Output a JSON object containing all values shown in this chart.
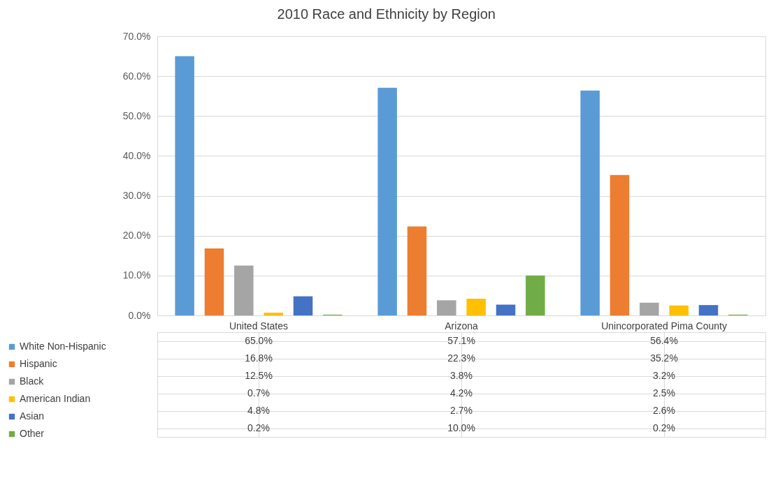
{
  "chart_data": {
    "type": "bar",
    "title": "2010 Race and Ethnicity by Region",
    "categories": [
      "United States",
      "Arizona",
      "Unincorporated Pima County"
    ],
    "series": [
      {
        "name": "White Non-Hispanic",
        "color": "#5b9bd5",
        "values": [
          65.0,
          57.1,
          56.4
        ],
        "value_labels": [
          "65.0%",
          "57.1%",
          "56.4%"
        ]
      },
      {
        "name": "Hispanic",
        "color": "#ed7d31",
        "values": [
          16.8,
          22.3,
          35.2
        ],
        "value_labels": [
          "16.8%",
          "22.3%",
          "35.2%"
        ]
      },
      {
        "name": "Black",
        "color": "#a5a5a5",
        "values": [
          12.5,
          3.8,
          3.2
        ],
        "value_labels": [
          "12.5%",
          "3.8%",
          "3.2%"
        ]
      },
      {
        "name": "American Indian",
        "color": "#ffc000",
        "values": [
          0.7,
          4.2,
          2.5
        ],
        "value_labels": [
          "0.7%",
          "4.2%",
          "2.5%"
        ]
      },
      {
        "name": "Asian",
        "color": "#4472c4",
        "values": [
          4.8,
          2.7,
          2.6
        ],
        "value_labels": [
          "4.8%",
          "2.7%",
          "2.6%"
        ]
      },
      {
        "name": "Other",
        "color": "#70ad47",
        "values": [
          0.2,
          10.0,
          0.2
        ],
        "value_labels": [
          "0.2%",
          "10.0%",
          "0.2%"
        ]
      }
    ],
    "ylim": [
      0,
      70
    ],
    "yticks": [
      {
        "value": 0,
        "label": "0.0%"
      },
      {
        "value": 10,
        "label": "10.0%"
      },
      {
        "value": 20,
        "label": "20.0%"
      },
      {
        "value": 30,
        "label": "30.0%"
      },
      {
        "value": 40,
        "label": "40.0%"
      },
      {
        "value": 50,
        "label": "50.0%"
      },
      {
        "value": 60,
        "label": "60.0%"
      },
      {
        "value": 70,
        "label": "70.0%"
      }
    ],
    "grid": "y",
    "legend": "bottom left"
  }
}
